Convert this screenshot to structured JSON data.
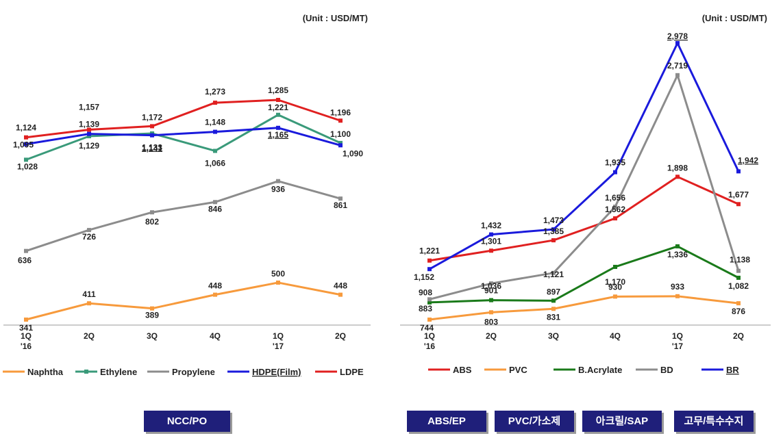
{
  "chart_data": [
    {
      "type": "line",
      "unit_label": "(Unit : USD/MT)",
      "categories": [
        "1Q\n'16",
        "2Q",
        "3Q",
        "4Q",
        "1Q\n'17",
        "2Q"
      ],
      "ylim": [
        0,
        1900
      ],
      "grid": false,
      "legend": "bottom",
      "series": [
        {
          "name": "Naphtha",
          "color": "#f79a3c",
          "values": [
            341,
            411,
            389,
            448,
            500,
            448
          ]
        },
        {
          "name": "Ethylene",
          "color": "#3a9a7a",
          "values": [
            1028,
            1129,
            1141,
            1066,
            1221,
            1100
          ]
        },
        {
          "name": "Propylene",
          "color": "#8c8c8c",
          "values": [
            636,
            726,
            802,
            846,
            936,
            861
          ]
        },
        {
          "name": "HDPE(Film)",
          "color": "#1a1adc",
          "values": [
            1095,
            1139,
            1133,
            1148,
            1165,
            1090
          ]
        },
        {
          "name": "LDPE",
          "color": "#e02020",
          "values": [
            1124,
            1157,
            1172,
            1273,
            1285,
            1196
          ]
        }
      ]
    },
    {
      "type": "line",
      "unit_label": "(Unit : USD/MT)",
      "categories": [
        "1Q\n'16",
        "2Q",
        "3Q",
        "4Q",
        "1Q\n'17",
        "2Q"
      ],
      "ylim": [
        0,
        3000
      ],
      "grid": false,
      "legend": "bottom",
      "series": [
        {
          "name": "ABS",
          "color": "#e02020",
          "values": [
            1221,
            1301,
            1385,
            1562,
            1898,
            1677
          ]
        },
        {
          "name": "PVC",
          "color": "#f79a3c",
          "values": [
            744,
            803,
            831,
            930,
            933,
            876
          ]
        },
        {
          "name": "B.Acrylate",
          "color": "#1a7a1a",
          "values": [
            883,
            901,
            897,
            1170,
            1336,
            1082
          ]
        },
        {
          "name": "BD",
          "color": "#8c8c8c",
          "values": [
            908,
            1036,
            1121,
            1656,
            2719,
            1138
          ]
        },
        {
          "name": "BR",
          "color": "#1a1adc",
          "values": [
            1152,
            1432,
            1473,
            1935,
            2978,
            1942
          ]
        }
      ]
    }
  ],
  "tags": {
    "left": [
      "NCC/PO"
    ],
    "right": [
      "ABS/EP",
      "PVC/가소제",
      "아크릴/SAP",
      "고무/특수수지"
    ]
  }
}
